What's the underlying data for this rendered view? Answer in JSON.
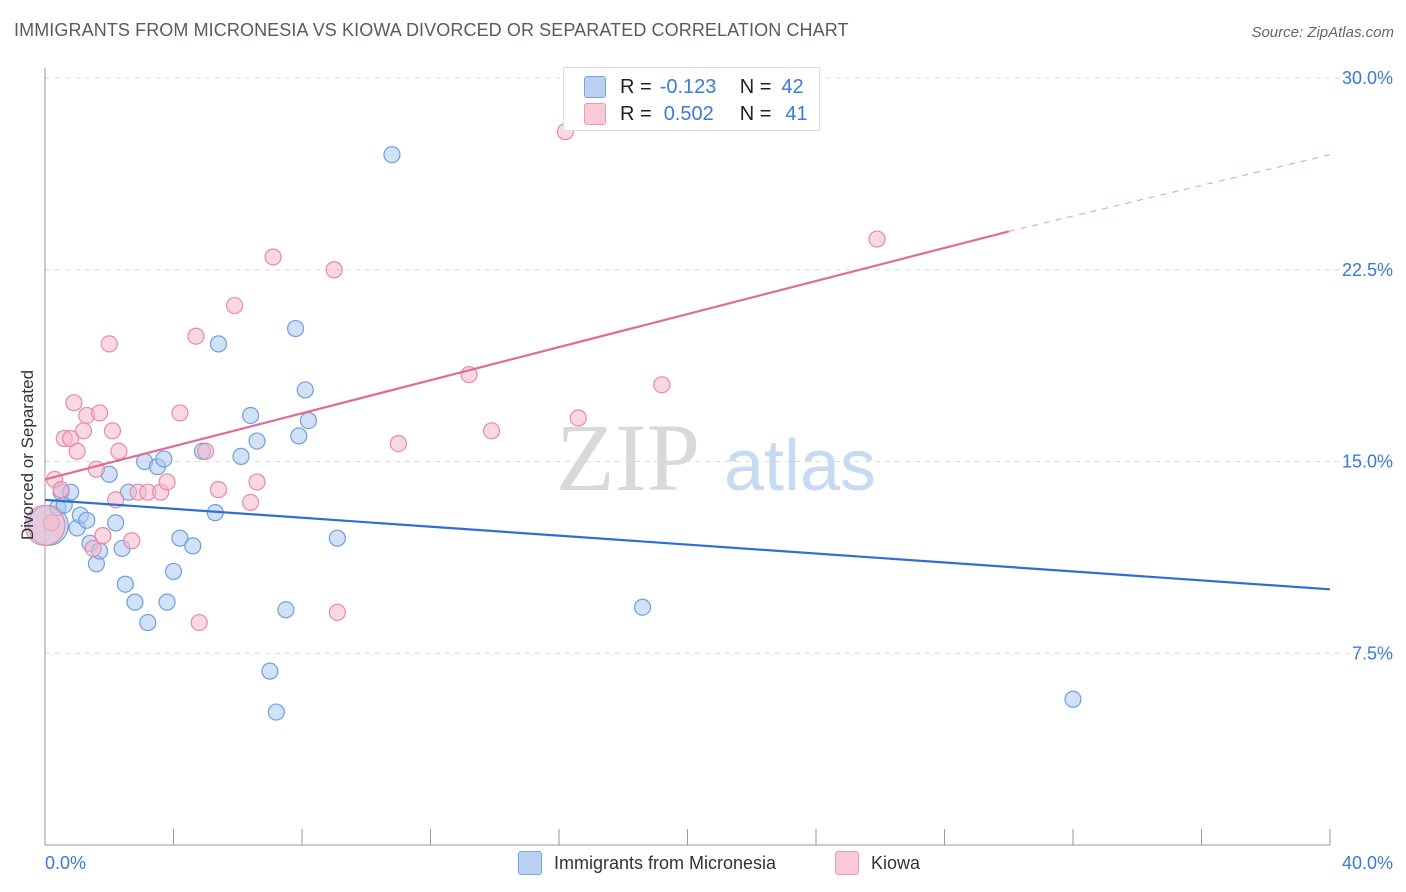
{
  "header": {
    "title": "IMMIGRANTS FROM MICRONESIA VS KIOWA DIVORCED OR SEPARATED CORRELATION CHART",
    "source": "Source: ZipAtlas.com"
  },
  "legend": {
    "rows": [
      {
        "r_label": "R =",
        "r_value": "-0.123",
        "n_label": "N =",
        "n_value": "42"
      },
      {
        "r_label": "R =",
        "r_value": "0.502",
        "n_label": "N =",
        "n_value": "41"
      }
    ]
  },
  "watermark": {
    "zip": "ZIP",
    "atlas": "atlas"
  },
  "colors": {
    "blue_fill": "#a9c8f2",
    "blue_stroke": "#6f9fdc",
    "blue_line": "#2f6fcf",
    "pink_fill": "#f6b8cb",
    "pink_stroke": "#e889a6",
    "pink_line": "#e06b95",
    "tick_label": "#3a7bd5",
    "grid": "#dcdcdc"
  },
  "chart_data": {
    "type": "scatter",
    "title": "IMMIGRANTS FROM MICRONESIA VS KIOWA DIVORCED OR SEPARATED CORRELATION CHART",
    "xlabel": "",
    "ylabel": "Divorced or Separated",
    "xlim": [
      0,
      40
    ],
    "ylim": [
      0,
      30
    ],
    "x_tick_labels": [
      "0.0%",
      "40.0%"
    ],
    "y_ticks": [
      7.5,
      15.0,
      22.5,
      30.0
    ],
    "y_tick_labels": [
      "7.5%",
      "15.0%",
      "22.5%",
      "30.0%"
    ],
    "grid": true,
    "legend_position": "top-center",
    "series": [
      {
        "name": "Immigrants from Micronesia",
        "color": "#6f9fdc",
        "trend": {
          "x": [
            0,
            40
          ],
          "y": [
            13.5,
            10.0
          ]
        },
        "points": [
          [
            0.1,
            12.5
          ],
          [
            0.4,
            13.2
          ],
          [
            0.5,
            13.8
          ],
          [
            0.6,
            13.3
          ],
          [
            0.8,
            13.8
          ],
          [
            1.0,
            12.4
          ],
          [
            1.1,
            12.9
          ],
          [
            1.3,
            12.7
          ],
          [
            1.4,
            11.8
          ],
          [
            1.6,
            11.0
          ],
          [
            1.7,
            11.5
          ],
          [
            2.0,
            14.5
          ],
          [
            2.2,
            12.6
          ],
          [
            2.4,
            11.6
          ],
          [
            2.5,
            10.2
          ],
          [
            2.6,
            13.8
          ],
          [
            2.8,
            9.5
          ],
          [
            3.1,
            15.0
          ],
          [
            3.2,
            8.7
          ],
          [
            3.5,
            14.8
          ],
          [
            3.7,
            15.1
          ],
          [
            3.8,
            9.5
          ],
          [
            4.0,
            10.7
          ],
          [
            4.2,
            12.0
          ],
          [
            4.6,
            11.7
          ],
          [
            4.9,
            15.4
          ],
          [
            5.3,
            13.0
          ],
          [
            5.4,
            19.6
          ],
          [
            6.1,
            15.2
          ],
          [
            6.4,
            16.8
          ],
          [
            6.6,
            15.8
          ],
          [
            7.0,
            6.8
          ],
          [
            7.2,
            5.2
          ],
          [
            7.5,
            9.2
          ],
          [
            7.8,
            20.2
          ],
          [
            7.9,
            16.0
          ],
          [
            8.1,
            17.8
          ],
          [
            8.2,
            16.6
          ],
          [
            9.1,
            12.0
          ],
          [
            10.8,
            27.0
          ],
          [
            18.6,
            9.3
          ],
          [
            32.0,
            5.7
          ]
        ]
      },
      {
        "name": "Kiowa",
        "color": "#e889a6",
        "trend": {
          "x": [
            0,
            30
          ],
          "y": [
            14.3,
            24.0
          ]
        },
        "trend_dashed": {
          "x": [
            30,
            40
          ],
          "y": [
            24.0,
            27.0
          ]
        },
        "points": [
          [
            0.2,
            12.6
          ],
          [
            0.3,
            14.3
          ],
          [
            0.5,
            13.9
          ],
          [
            0.6,
            15.9
          ],
          [
            0.8,
            15.9
          ],
          [
            0.9,
            17.3
          ],
          [
            1.0,
            15.4
          ],
          [
            1.2,
            16.2
          ],
          [
            1.3,
            16.8
          ],
          [
            1.5,
            11.6
          ],
          [
            1.6,
            14.7
          ],
          [
            1.7,
            16.9
          ],
          [
            1.8,
            12.1
          ],
          [
            2.0,
            19.6
          ],
          [
            2.1,
            16.2
          ],
          [
            2.2,
            13.5
          ],
          [
            2.3,
            15.4
          ],
          [
            2.7,
            11.9
          ],
          [
            2.9,
            13.8
          ],
          [
            3.2,
            13.8
          ],
          [
            3.6,
            13.8
          ],
          [
            3.8,
            14.2
          ],
          [
            4.2,
            16.9
          ],
          [
            4.7,
            19.9
          ],
          [
            4.8,
            8.7
          ],
          [
            5.0,
            15.4
          ],
          [
            5.4,
            13.9
          ],
          [
            5.9,
            21.1
          ],
          [
            6.4,
            13.4
          ],
          [
            6.6,
            14.2
          ],
          [
            7.1,
            23.0
          ],
          [
            9.0,
            22.5
          ],
          [
            9.1,
            9.1
          ],
          [
            11.0,
            15.7
          ],
          [
            13.2,
            18.4
          ],
          [
            13.9,
            16.2
          ],
          [
            16.2,
            27.9
          ],
          [
            16.6,
            16.7
          ],
          [
            19.2,
            18.0
          ],
          [
            25.9,
            23.7
          ],
          [
            0.0,
            12.5
          ]
        ]
      }
    ]
  },
  "bottom_legend": {
    "items": [
      {
        "label": "Immigrants from Micronesia"
      },
      {
        "label": "Kiowa"
      }
    ]
  }
}
